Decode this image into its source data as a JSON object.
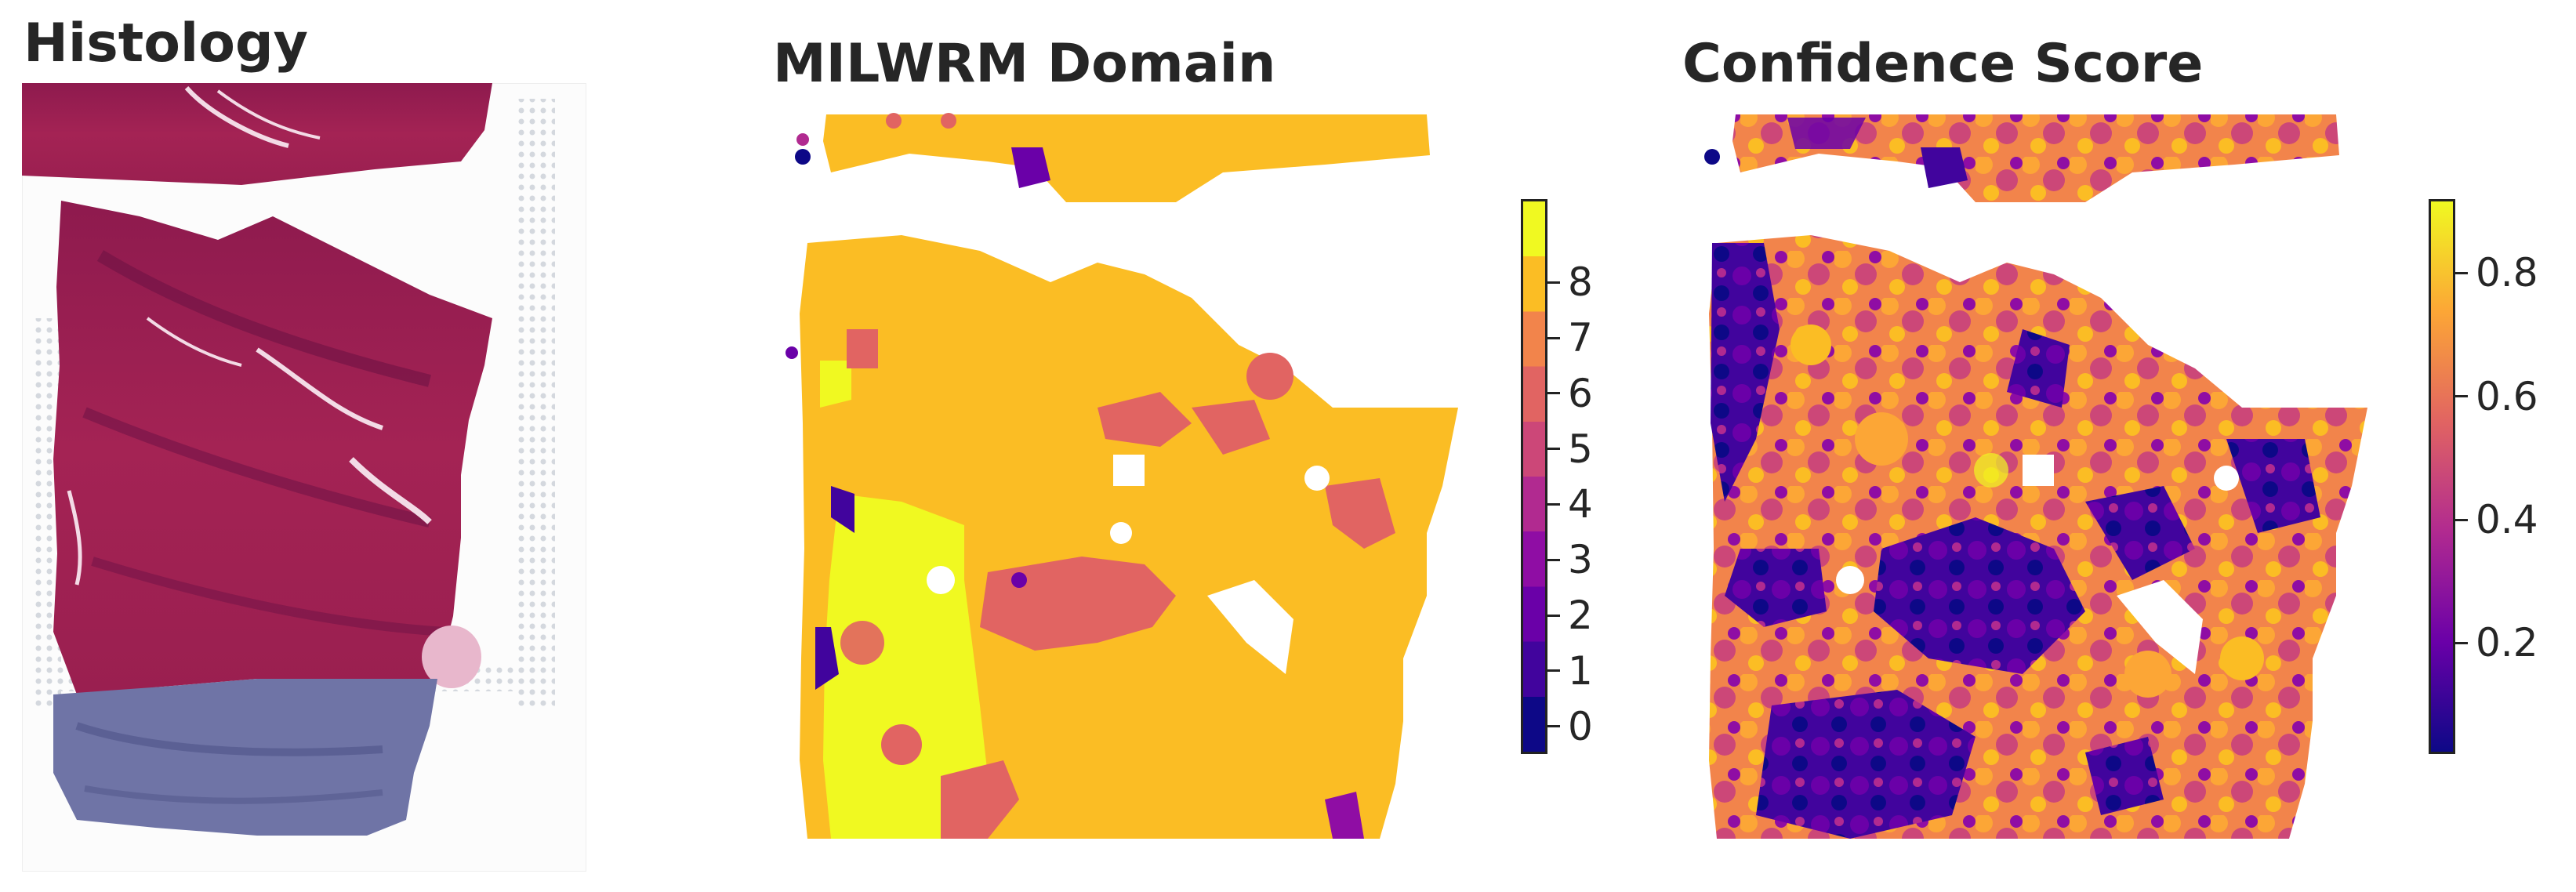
{
  "panels": {
    "histology": {
      "title": "Histology"
    },
    "domain": {
      "title": "MILWRM Domain"
    },
    "confidence": {
      "title": "Confidence Score"
    }
  },
  "domain_colorbar": {
    "ticks": [
      "0",
      "1",
      "2",
      "3",
      "4",
      "5",
      "6",
      "7",
      "8"
    ],
    "colors": [
      "#0d0887",
      "#41049d",
      "#6a00a8",
      "#8f0da4",
      "#b12a90",
      "#cc4778",
      "#e16462",
      "#f2844b",
      "#fbbd24",
      "#f0f921"
    ]
  },
  "confidence_colorbar": {
    "ticks": [
      "0.2",
      "0.4",
      "0.6",
      "0.8"
    ],
    "colors": [
      "#0d0887",
      "#6a00a8",
      "#b12a90",
      "#e16462",
      "#fca636",
      "#f0f921"
    ]
  },
  "colors": {
    "tissue_red": "#9b1c4c",
    "tissue_dark": "#6e1245",
    "tissue_blue": "#6b6fa3",
    "domain_main": "#fbbd24",
    "domain_yellow": "#f0f921",
    "domain_salmon": "#e16462"
  }
}
